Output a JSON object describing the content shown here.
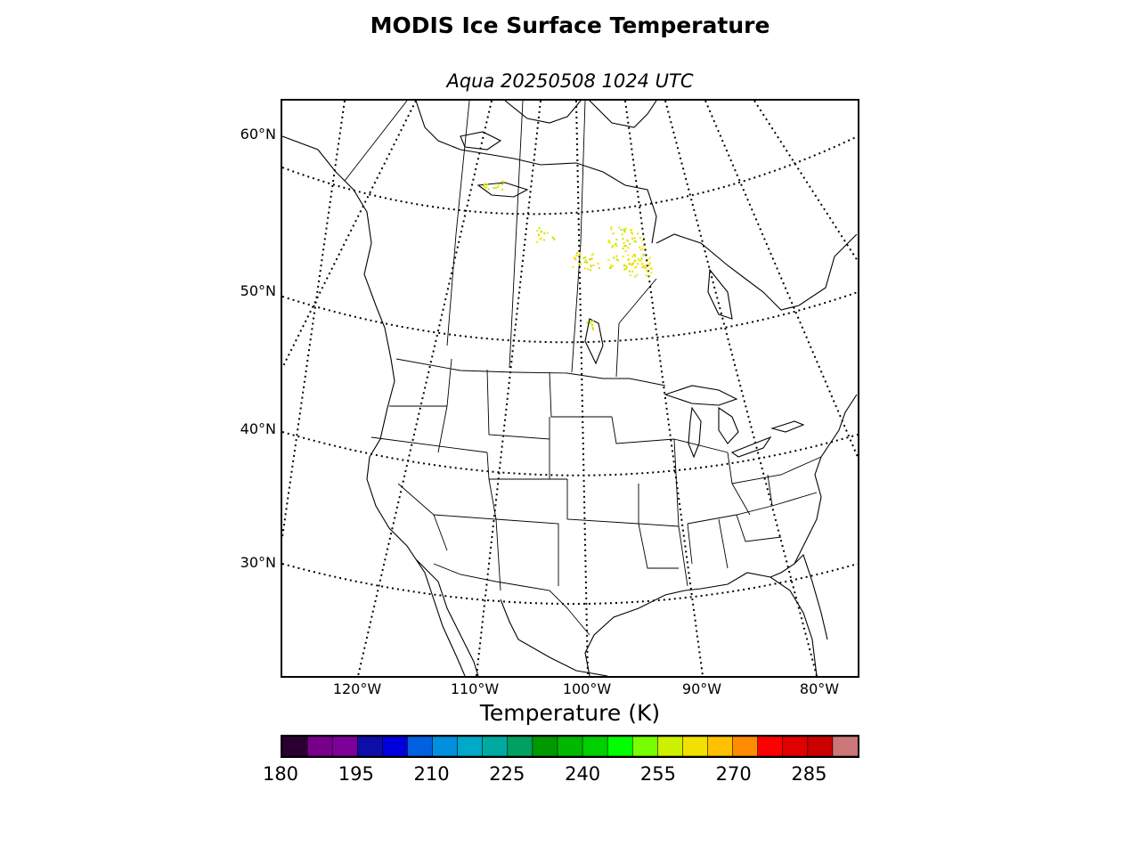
{
  "title": "MODIS Ice Surface Temperature",
  "subtitle": "Aqua 20250508 1024 UTC",
  "map": {
    "projection": "lambert-conformal",
    "region": "North America",
    "lat_labels": [
      "60°N",
      "50°N",
      "40°N",
      "30°N"
    ],
    "lon_labels": [
      "120°W",
      "110°W",
      "100°W",
      "90°W",
      "80°W"
    ],
    "graticule_style": "dotted",
    "coastline_color": "#000000"
  },
  "colorbar": {
    "label": "Temperature (K)",
    "range": [
      180,
      295
    ],
    "ticks": [
      "180",
      "195",
      "210",
      "225",
      "240",
      "255",
      "270",
      "285"
    ],
    "colors": [
      "#2a0033",
      "#77008a",
      "#7d0099",
      "#0d0da8",
      "#0000dd",
      "#0060e0",
      "#0090dd",
      "#00a9c7",
      "#00aaa0",
      "#00a060",
      "#009900",
      "#00b800",
      "#00d000",
      "#00ff00",
      "#77ff00",
      "#ccf000",
      "#f2e000",
      "#ffc000",
      "#ff8c00",
      "#ff0000",
      "#e00000",
      "#cc0000",
      "#cc7777"
    ]
  },
  "data_color_samples": [
    "#ffd200",
    "#e6f000",
    "#aaee00"
  ]
}
